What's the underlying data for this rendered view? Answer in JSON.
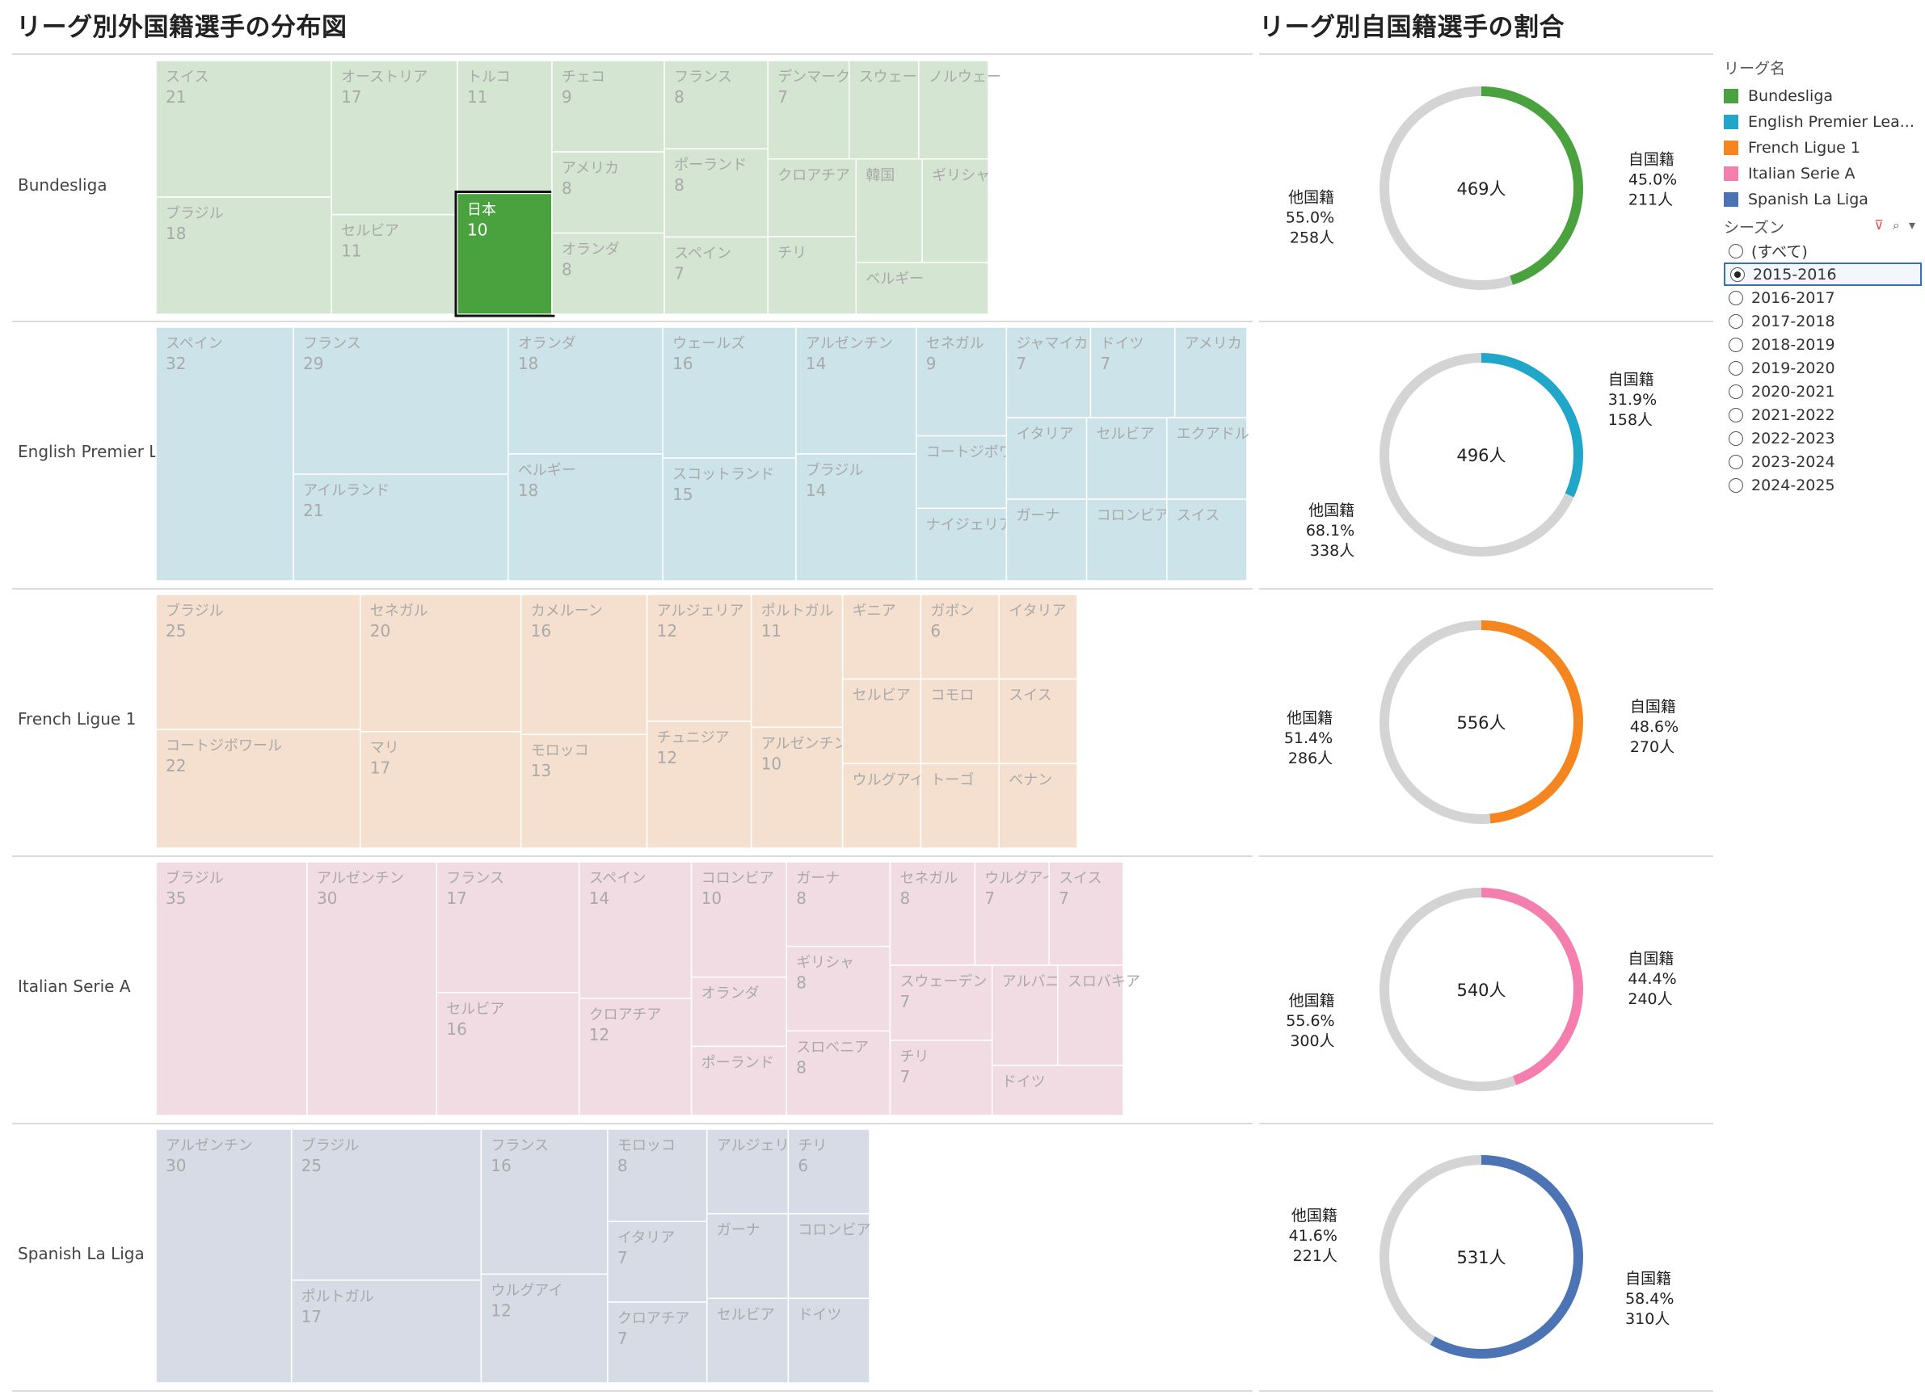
{
  "titles": {
    "left": "リーグ別外国籍選手の分布図",
    "right": "リーグ別自国籍選手の割合"
  },
  "legend": {
    "title": "リーグ名",
    "items": [
      {
        "label": "Bundesliga",
        "color": "#4aa23f"
      },
      {
        "label": "English Premier Lea...",
        "color": "#1fa6c9"
      },
      {
        "label": "French Ligue 1",
        "color": "#f5861f"
      },
      {
        "label": "Italian Serie A",
        "color": "#f47fae"
      },
      {
        "label": "Spanish La Liga",
        "color": "#4c74b5"
      }
    ]
  },
  "season_filter": {
    "title": "シーズン",
    "options": [
      "(すべて)",
      "2015-2016",
      "2016-2017",
      "2017-2018",
      "2018-2019",
      "2019-2020",
      "2020-2021",
      "2021-2022",
      "2022-2023",
      "2023-2024",
      "2024-2025"
    ],
    "selected": "2015-2016"
  },
  "chart_data": [
    {
      "type": "treemap",
      "title": "リーグ別外国籍選手の分布図",
      "rows": [
        {
          "league": "Bundesliga",
          "color": "#4aa23f",
          "light": "#d4e5d2",
          "highlighted": "日本",
          "cells": [
            {
              "label": "スイス",
              "value": 21
            },
            {
              "label": "ブラジル",
              "value": 18
            },
            {
              "label": "オーストリア",
              "value": 17
            },
            {
              "label": "セルビア",
              "value": 11
            },
            {
              "label": "トルコ",
              "value": 11
            },
            {
              "label": "日本",
              "value": 10
            },
            {
              "label": "チェコ",
              "value": 9
            },
            {
              "label": "アメリカ",
              "value": 8
            },
            {
              "label": "オランダ",
              "value": 8
            },
            {
              "label": "フランス",
              "value": 8
            },
            {
              "label": "ポーランド",
              "value": 8
            },
            {
              "label": "スペイン",
              "value": 7
            },
            {
              "label": "デンマーク",
              "value": 7
            },
            {
              "label": "スウェーデン"
            },
            {
              "label": "ノルウェー"
            },
            {
              "label": "クロアチア"
            },
            {
              "label": "チリ"
            },
            {
              "label": "韓国"
            },
            {
              "label": "ギリシャ"
            },
            {
              "label": "ベルギー"
            }
          ]
        },
        {
          "league": "English Premier League",
          "color": "#1fa6c9",
          "light": "#cce3e9",
          "cells": [
            {
              "label": "スペイン",
              "value": 32
            },
            {
              "label": "フランス",
              "value": 29
            },
            {
              "label": "アイルランド",
              "value": 21
            },
            {
              "label": "オランダ",
              "value": 18
            },
            {
              "label": "ベルギー",
              "value": 18
            },
            {
              "label": "ウェールズ",
              "value": 16
            },
            {
              "label": "スコットランド",
              "value": 15
            },
            {
              "label": "アルゼンチン",
              "value": 14
            },
            {
              "label": "ブラジル",
              "value": 14
            },
            {
              "label": "セネガル",
              "value": 9
            },
            {
              "label": "コートジボワール"
            },
            {
              "label": "ナイジェリア"
            },
            {
              "label": "ジャマイカ",
              "value": 7
            },
            {
              "label": "ドイツ",
              "value": 7
            },
            {
              "label": "アメリカ"
            },
            {
              "label": "イタリア"
            },
            {
              "label": "ガーナ"
            },
            {
              "label": "セルビア"
            },
            {
              "label": "エクアドル"
            },
            {
              "label": "コロンビア"
            },
            {
              "label": "スイス"
            }
          ]
        },
        {
          "league": "French Ligue 1",
          "color": "#f5861f",
          "light": "#f5e0cf",
          "cells": [
            {
              "label": "ブラジル",
              "value": 25
            },
            {
              "label": "コートジボワール",
              "value": 22
            },
            {
              "label": "セネガル",
              "value": 20
            },
            {
              "label": "マリ",
              "value": 17
            },
            {
              "label": "カメルーン",
              "value": 16
            },
            {
              "label": "モロッコ",
              "value": 13
            },
            {
              "label": "アルジェリア",
              "value": 12
            },
            {
              "label": "チュニジア",
              "value": 12
            },
            {
              "label": "ポルトガル",
              "value": 11
            },
            {
              "label": "アルゼンチン",
              "value": 10
            },
            {
              "label": "ギニア"
            },
            {
              "label": "ガボン",
              "value": 6
            },
            {
              "label": "イタリア"
            },
            {
              "label": "セルビア"
            },
            {
              "label": "ウルグアイ"
            },
            {
              "label": "コモロ"
            },
            {
              "label": "スイス"
            },
            {
              "label": "トーゴ"
            },
            {
              "label": "ベナン"
            }
          ]
        },
        {
          "league": "Italian Serie A",
          "color": "#f47fae",
          "light": "#f2dce4",
          "cells": [
            {
              "label": "ブラジル",
              "value": 35
            },
            {
              "label": "アルゼンチン",
              "value": 30
            },
            {
              "label": "フランス",
              "value": 17
            },
            {
              "label": "セルビア",
              "value": 16
            },
            {
              "label": "スペイン",
              "value": 14
            },
            {
              "label": "クロアチア",
              "value": 12
            },
            {
              "label": "コロンビア",
              "value": 10
            },
            {
              "label": "オランダ"
            },
            {
              "label": "ポーランド"
            },
            {
              "label": "ガーナ",
              "value": 8
            },
            {
              "label": "ギリシャ",
              "value": 8
            },
            {
              "label": "スロベニア",
              "value": 8
            },
            {
              "label": "セネガル",
              "value": 8
            },
            {
              "label": "ウルグアイ",
              "value": 7
            },
            {
              "label": "スイス",
              "value": 7
            },
            {
              "label": "スウェーデン",
              "value": 7
            },
            {
              "label": "チリ",
              "value": 7
            },
            {
              "label": "アルバニア"
            },
            {
              "label": "スロバキア"
            },
            {
              "label": "ドイツ"
            }
          ]
        },
        {
          "league": "Spanish La Liga",
          "color": "#4c74b5",
          "light": "#d6dbe6",
          "cells": [
            {
              "label": "アルゼンチン",
              "value": 30
            },
            {
              "label": "ブラジル",
              "value": 25
            },
            {
              "label": "ポルトガル",
              "value": 17
            },
            {
              "label": "フランス",
              "value": 16
            },
            {
              "label": "ウルグアイ",
              "value": 12
            },
            {
              "label": "モロッコ",
              "value": 8
            },
            {
              "label": "イタリア",
              "value": 7
            },
            {
              "label": "クロアチア",
              "value": 7
            },
            {
              "label": "アルジェリア"
            },
            {
              "label": "チリ",
              "value": 6
            },
            {
              "label": "ガーナ"
            },
            {
              "label": "コロンビア"
            },
            {
              "label": "セルビア"
            },
            {
              "label": "ドイツ"
            }
          ]
        }
      ]
    },
    {
      "type": "pie",
      "title": "リーグ別自国籍選手の割合",
      "series": [
        {
          "league": "Bundesliga",
          "total": "469人",
          "color": "#4aa23f",
          "slices": [
            {
              "label": "自国籍",
              "pct": "45.0%",
              "count": "211人",
              "value": 211
            },
            {
              "label": "他国籍",
              "pct": "55.0%",
              "count": "258人",
              "value": 258
            }
          ]
        },
        {
          "league": "English Premier League",
          "total": "496人",
          "color": "#1fa6c9",
          "slices": [
            {
              "label": "自国籍",
              "pct": "31.9%",
              "count": "158人",
              "value": 158
            },
            {
              "label": "他国籍",
              "pct": "68.1%",
              "count": "338人",
              "value": 338
            }
          ]
        },
        {
          "league": "French Ligue 1",
          "total": "556人",
          "color": "#f5861f",
          "slices": [
            {
              "label": "自国籍",
              "pct": "48.6%",
              "count": "270人",
              "value": 270
            },
            {
              "label": "他国籍",
              "pct": "51.4%",
              "count": "286人",
              "value": 286
            }
          ]
        },
        {
          "league": "Italian Serie A",
          "total": "540人",
          "color": "#f47fae",
          "slices": [
            {
              "label": "自国籍",
              "pct": "44.4%",
              "count": "240人",
              "value": 240
            },
            {
              "label": "他国籍",
              "pct": "55.6%",
              "count": "300人",
              "value": 300
            }
          ]
        },
        {
          "league": "Spanish La Liga",
          "total": "531人",
          "color": "#4c74b5",
          "slices": [
            {
              "label": "自国籍",
              "pct": "58.4%",
              "count": "310人",
              "value": 310
            },
            {
              "label": "他国籍",
              "pct": "41.6%",
              "count": "221人",
              "value": 221
            }
          ]
        }
      ]
    }
  ]
}
